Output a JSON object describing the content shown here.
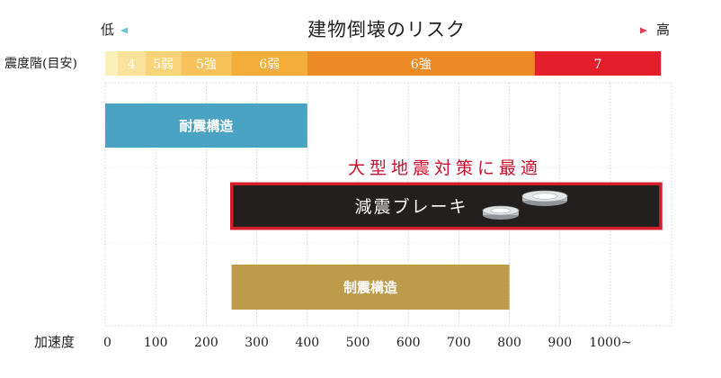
{
  "chart_data": {
    "type": "bar",
    "title": "建物倒壊のリスク",
    "risk_low_label": "低",
    "risk_high_label": "高",
    "risk_low_color": "#6cc2d8",
    "risk_high_color": "#e83e58",
    "scale_label": "震度階(目安)",
    "xlabel": "加速度",
    "xlim": [
      0,
      1100
    ],
    "x_ticks": [
      {
        "value": 0,
        "label": "0"
      },
      {
        "value": 100,
        "label": "100"
      },
      {
        "value": 200,
        "label": "200"
      },
      {
        "value": 300,
        "label": "300"
      },
      {
        "value": 400,
        "label": "400"
      },
      {
        "value": 500,
        "label": "500"
      },
      {
        "value": 600,
        "label": "600"
      },
      {
        "value": 700,
        "label": "700"
      },
      {
        "value": 800,
        "label": "800"
      },
      {
        "value": 900,
        "label": "900"
      },
      {
        "value": 1000,
        "label": "1000~"
      }
    ],
    "intensity_bands": [
      {
        "label": "",
        "start": 0,
        "end": 25,
        "color": "#fbf0b8"
      },
      {
        "label": "4",
        "start": 25,
        "end": 80,
        "color": "#fbe29a"
      },
      {
        "label": "5弱",
        "start": 80,
        "end": 150,
        "color": "#f9d37a"
      },
      {
        "label": "5強",
        "start": 150,
        "end": 250,
        "color": "#f7c25a"
      },
      {
        "label": "6弱",
        "start": 250,
        "end": 400,
        "color": "#f5ad3a"
      },
      {
        "label": "6強",
        "start": 400,
        "end": 850,
        "color": "#ee8a25"
      },
      {
        "label": "7",
        "start": 850,
        "end": 1100,
        "color": "#e31f2b"
      }
    ],
    "series": [
      {
        "name": "耐震構造",
        "start": 0,
        "end": 400,
        "color": "#4aa3c3"
      },
      {
        "name": "減震ブレーキ",
        "start": 250,
        "end": 1100,
        "color": "#231f1e",
        "border": "#d31e2c"
      },
      {
        "name": "制震構造",
        "start": 250,
        "end": 800,
        "color": "#bd9b4b"
      }
    ],
    "annotation": "大型地震対策に最適",
    "annotation_color": "#c8102e",
    "grid": true
  }
}
